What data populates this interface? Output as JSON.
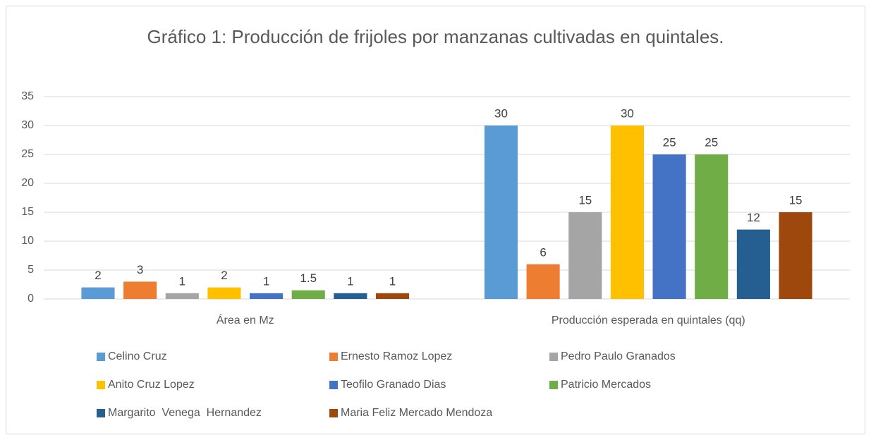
{
  "chart_data": {
    "type": "bar",
    "title": "Gráfico 1: Producción de frijoles por manzanas cultivadas en quintales.",
    "categories": [
      "Área en Mz",
      "Producción esperada en quintales (qq)"
    ],
    "series": [
      {
        "name": "Celino Cruz",
        "color": "#5b9bd5",
        "values": [
          2,
          30
        ]
      },
      {
        "name": "Ernesto Ramoz Lopez",
        "color": "#ed7d31",
        "values": [
          3,
          6
        ]
      },
      {
        "name": "Pedro Paulo Granados",
        "color": "#a5a5a5",
        "values": [
          1,
          15
        ]
      },
      {
        "name": "Anito Cruz Lopez",
        "color": "#ffc000",
        "values": [
          2,
          30
        ]
      },
      {
        "name": "Teofilo Granado Dias",
        "color": "#4472c4",
        "values": [
          1,
          25
        ]
      },
      {
        "name": "Patricio Mercados",
        "color": "#70ad47",
        "values": [
          1.5,
          25
        ]
      },
      {
        "name": "Margarito  Venega  Hernandez",
        "color": "#255e91",
        "values": [
          1,
          12
        ]
      },
      {
        "name": "Maria Feliz Mercado Mendoza",
        "color": "#9e480e",
        "values": [
          1,
          15
        ]
      }
    ],
    "ylim": [
      0,
      35
    ],
    "yticks": [
      0,
      5,
      10,
      15,
      20,
      25,
      30,
      35
    ],
    "grid": true,
    "legend": "bottom"
  }
}
